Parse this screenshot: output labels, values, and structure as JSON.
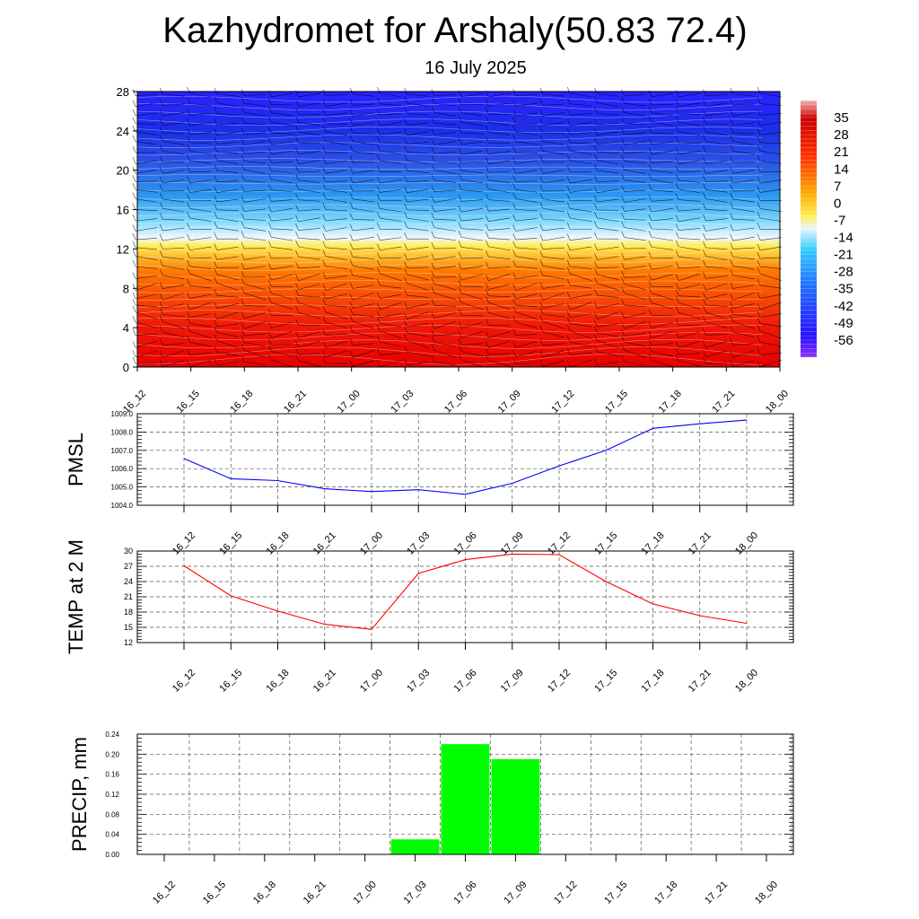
{
  "title": "Kazhydromet for Arshaly(50.83 72.4)",
  "subtitle": "16 July 2025",
  "chart_data": [
    {
      "type": "heatmap",
      "name": "temperature-cross-section",
      "x_labels": [
        "16_12",
        "16_15",
        "16_18",
        "16_21",
        "17_00",
        "17_03",
        "17_06",
        "17_09",
        "17_12",
        "17_15",
        "17_18",
        "17_21",
        "18_00"
      ],
      "y_ticks": [
        0,
        4,
        8,
        12,
        16,
        20,
        24,
        28
      ],
      "ylim": [
        0,
        28
      ],
      "colorbar_ticks": [
        35,
        28,
        21,
        14,
        7,
        0,
        -7,
        -14,
        -21,
        -28,
        -35,
        -42,
        -49,
        -56
      ],
      "colorbar_range": [
        -63,
        42
      ],
      "colors": {
        "hot": "#e60000",
        "orange": "#ff9900",
        "yellow": "#ffee55",
        "pale": "#e6f5ff",
        "cyan": "#33ccff",
        "blue": "#2a50e6",
        "deep": "#1a1aff",
        "violet": "#8c33ff"
      },
      "contours": "white",
      "wind_barbs": true
    },
    {
      "type": "line",
      "name": "pmsl",
      "ylabel": "PMSL",
      "x_labels": [
        "16_12",
        "16_15",
        "16_18",
        "16_21",
        "17_00",
        "17_03",
        "17_06",
        "17_09",
        "17_12",
        "17_15",
        "17_18",
        "17_21",
        "18_00"
      ],
      "y_ticks": [
        "1004.0",
        "1005.0",
        "1006.0",
        "1007.0",
        "1008.0",
        "1009.0"
      ],
      "ylim": [
        1004,
        1009
      ],
      "series": [
        {
          "color": "#0000ff",
          "values": [
            1006.55,
            1005.45,
            1005.35,
            1004.9,
            1004.75,
            1004.85,
            1004.6,
            1005.2,
            1006.15,
            1007.0,
            1008.2,
            1008.45,
            1008.65
          ]
        }
      ],
      "grid": true
    },
    {
      "type": "line",
      "name": "temp-2m",
      "ylabel": "TEMP at 2 M",
      "x_labels": [
        "16_12",
        "16_15",
        "16_18",
        "16_21",
        "17_00",
        "17_03",
        "17_06",
        "17_09",
        "17_12",
        "17_15",
        "17_18",
        "17_21",
        "18_00"
      ],
      "y_ticks": [
        "12",
        "15",
        "18",
        "21",
        "24",
        "27",
        "30"
      ],
      "ylim": [
        12,
        30
      ],
      "series": [
        {
          "color": "#ff0000",
          "values": [
            27.1,
            21.2,
            18.2,
            15.6,
            14.6,
            25.6,
            28.3,
            29.4,
            29.3,
            24.0,
            19.6,
            17.3,
            15.8
          ]
        }
      ],
      "grid": true
    },
    {
      "type": "bar",
      "name": "precip",
      "ylabel": "PRECIP, mm",
      "categories": [
        "16_12",
        "16_15",
        "16_18",
        "16_21",
        "17_00",
        "17_03",
        "17_06",
        "17_09",
        "17_12",
        "17_15",
        "17_18",
        "17_21",
        "18_00"
      ],
      "y_ticks": [
        "0.00",
        "0.04",
        "0.08",
        "0.12",
        "0.16",
        "0.20",
        "0.24"
      ],
      "ylim": [
        0,
        0.24
      ],
      "values": [
        0,
        0,
        0,
        0,
        0,
        0.03,
        0.22,
        0.19,
        0,
        0,
        0,
        0,
        0
      ],
      "bar_color": "#00ff00",
      "grid": true
    }
  ]
}
